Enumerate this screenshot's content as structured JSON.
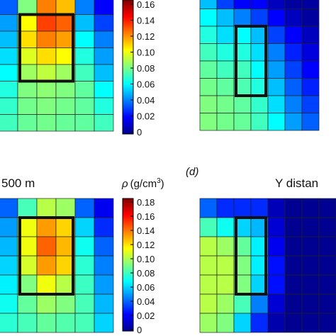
{
  "texts": {
    "label_top_left": "500 m",
    "rho_symbol": "ρ",
    "unit_base": "(g/cm",
    "unit_exp": "3",
    "unit_close": ")",
    "panel_d": "(d)",
    "label_top_right": "Y distan"
  },
  "chart_data": [
    {
      "type": "heatmap",
      "grid": {
        "rows": 8,
        "cols": 6,
        "visible_rows": 7,
        "visible_cols": 6
      },
      "colorbar": {
        "min": 0,
        "max": 0.16,
        "ticks": [
          "0.16",
          "0.14",
          "0.12",
          "0.10",
          "0.08",
          "0.06",
          "0.04",
          "0.02",
          "0"
        ]
      },
      "highlight_box": {
        "row_start": 1,
        "row_end": 4,
        "col_start": 1,
        "col_end": 3
      },
      "values": [
        [
          0.035,
          0.08,
          0.12,
          0.11,
          0.04,
          0.02
        ],
        [
          0.045,
          0.1,
          0.13,
          0.125,
          0.05,
          0.03
        ],
        [
          0.05,
          0.105,
          0.12,
          0.115,
          0.06,
          0.04
        ],
        [
          0.055,
          0.095,
          0.105,
          0.1,
          0.065,
          0.045
        ],
        [
          0.06,
          0.085,
          0.09,
          0.085,
          0.07,
          0.05
        ],
        [
          0.065,
          0.08,
          0.082,
          0.08,
          0.075,
          0.06
        ],
        [
          0.068,
          0.078,
          0.08,
          0.078,
          0.075,
          0.065
        ],
        [
          0.07,
          0.076,
          0.078,
          0.076,
          0.075,
          0.07
        ]
      ]
    },
    {
      "type": "heatmap",
      "grid": {
        "rows": 8,
        "cols": 7,
        "visible_rows": 7,
        "visible_cols": 7
      },
      "colorbar": {
        "min": 0,
        "max": 0.16
      },
      "highlight_box": {
        "row_start": 2,
        "row_end": 5,
        "col_start": 2,
        "col_end": 3
      },
      "values": [
        [
          0.05,
          0.03,
          0.02,
          0.02,
          0.01,
          0.005,
          0.005
        ],
        [
          0.06,
          0.05,
          0.04,
          0.03,
          0.02,
          0.01,
          0.005
        ],
        [
          0.065,
          0.055,
          0.06,
          0.05,
          0.03,
          0.02,
          0.01
        ],
        [
          0.07,
          0.065,
          0.065,
          0.055,
          0.04,
          0.025,
          0.015
        ],
        [
          0.075,
          0.07,
          0.07,
          0.06,
          0.045,
          0.03,
          0.02
        ],
        [
          0.078,
          0.075,
          0.072,
          0.065,
          0.05,
          0.035,
          0.025
        ],
        [
          0.08,
          0.078,
          0.075,
          0.068,
          0.055,
          0.04,
          0.03
        ],
        [
          0.08,
          0.078,
          0.076,
          0.07,
          0.06,
          0.045,
          0.035
        ]
      ]
    },
    {
      "type": "heatmap",
      "grid": {
        "rows": 7,
        "cols": 6,
        "visible_rows": 7,
        "visible_cols": 6
      },
      "colorbar": {
        "min": 0,
        "max": 0.18,
        "ticks": [
          "0.18",
          "0.16",
          "0.14",
          "0.12",
          "0.10",
          "0.08",
          "0.06",
          "0.04",
          "0.02",
          "0"
        ]
      },
      "highlight_box": {
        "row_start": 1,
        "row_end": 4,
        "col_start": 1,
        "col_end": 3
      },
      "values": [
        [
          0.04,
          0.08,
          0.1,
          0.095,
          0.04,
          0.02
        ],
        [
          0.05,
          0.11,
          0.13,
          0.12,
          0.06,
          0.03
        ],
        [
          0.055,
          0.11,
          0.14,
          0.125,
          0.07,
          0.04
        ],
        [
          0.06,
          0.105,
          0.13,
          0.12,
          0.075,
          0.045
        ],
        [
          0.065,
          0.09,
          0.11,
          0.1,
          0.078,
          0.05
        ],
        [
          0.07,
          0.085,
          0.095,
          0.09,
          0.08,
          0.055
        ],
        [
          0.075,
          0.08,
          0.085,
          0.082,
          0.08,
          0.06
        ]
      ]
    },
    {
      "type": "heatmap",
      "grid": {
        "rows": 7,
        "cols": 8,
        "visible_rows": 7,
        "visible_cols": 8
      },
      "colorbar": {
        "min": 0,
        "max": 0.18
      },
      "highlight_box": {
        "row_start": 1,
        "row_end": 4,
        "col_start": 2,
        "col_end": 3
      },
      "values": [
        [
          0.04,
          0.03,
          0.03,
          0.03,
          0.01,
          0.003,
          0.003,
          0.003
        ],
        [
          0.08,
          0.07,
          0.06,
          0.055,
          0.015,
          0.003,
          0.003,
          0.003
        ],
        [
          0.1,
          0.095,
          0.085,
          0.065,
          0.02,
          0.003,
          0.003,
          0.003
        ],
        [
          0.1,
          0.1,
          0.09,
          0.065,
          0.025,
          0.003,
          0.003,
          0.003
        ],
        [
          0.1,
          0.1,
          0.09,
          0.06,
          0.025,
          0.003,
          0.003,
          0.003
        ],
        [
          0.1,
          0.095,
          0.08,
          0.045,
          0.015,
          0.003,
          0.003,
          0.003
        ],
        [
          0.095,
          0.09,
          0.06,
          0.03,
          0.008,
          0.003,
          0.003,
          0.003
        ]
      ]
    }
  ]
}
